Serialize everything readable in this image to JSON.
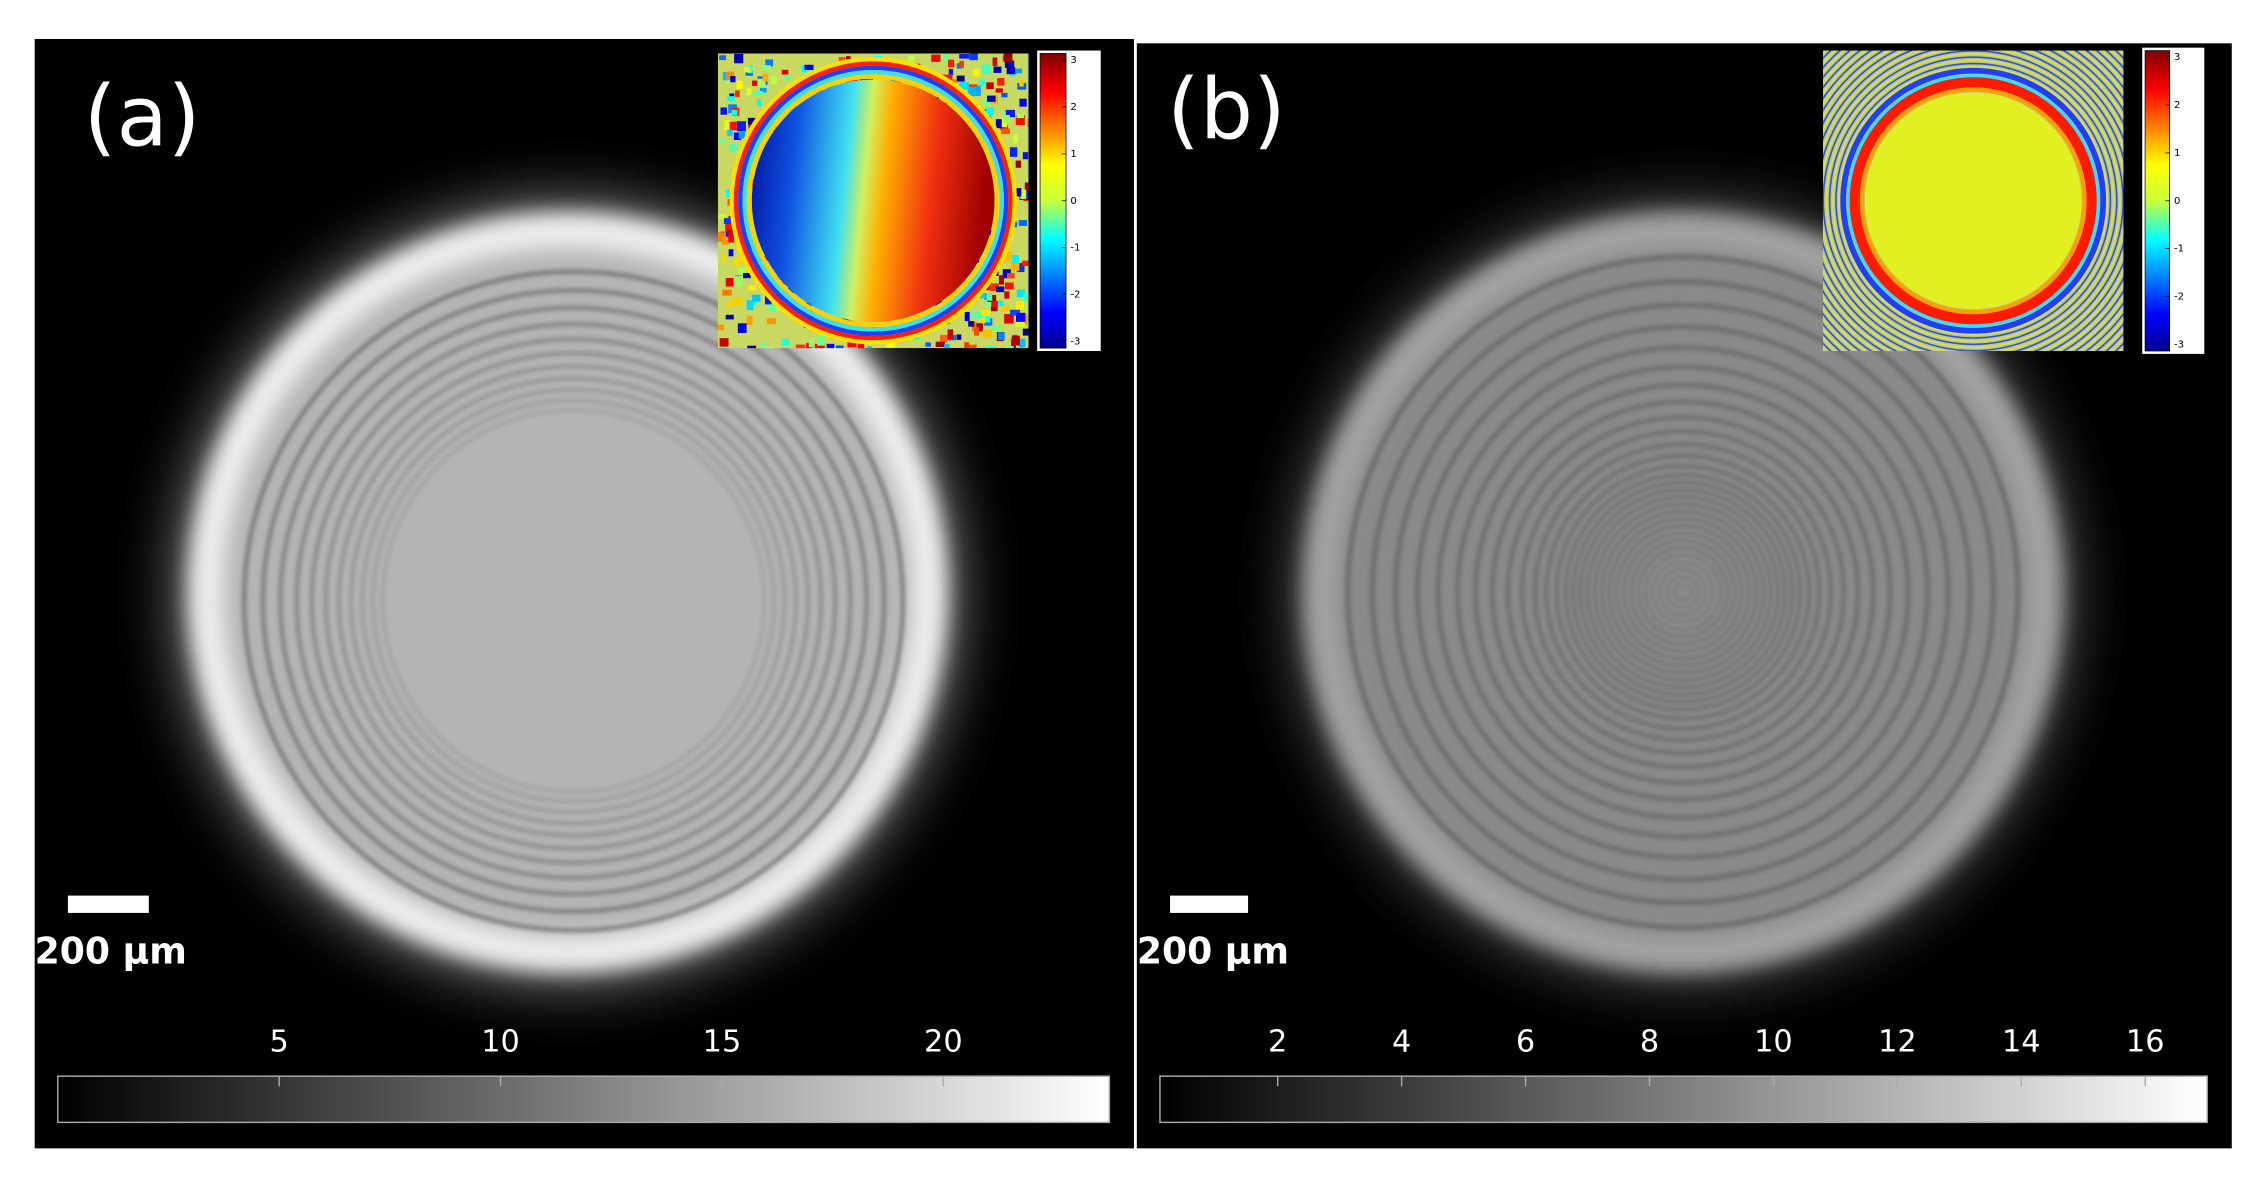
{
  "panels": [
    {
      "label": "(a)",
      "scale_bar": "200 μm",
      "colorbar": {
        "lim": [
          0,
          23.75
        ],
        "ticks": [
          5,
          10,
          15,
          20
        ]
      },
      "inset_colorbar": {
        "lim": [
          -3.14,
          3.14
        ],
        "ticks": [
          3,
          2,
          1,
          0,
          -1,
          -2,
          -3
        ]
      }
    },
    {
      "label": "(b)",
      "scale_bar": "200 μm",
      "colorbar": {
        "lim": [
          0.1,
          17
        ],
        "ticks": [
          2,
          4,
          6,
          8,
          10,
          12,
          14,
          16
        ]
      },
      "inset_colorbar": {
        "lim": [
          -3.14,
          3.14
        ],
        "ticks": [
          3,
          2,
          1,
          0,
          -1,
          -2,
          -3
        ]
      }
    }
  ]
}
